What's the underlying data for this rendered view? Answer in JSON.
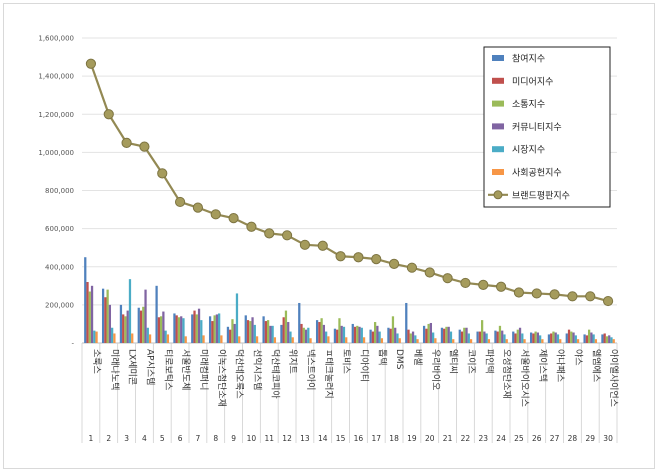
{
  "chart_data": {
    "type": "bar",
    "title": "",
    "xlabel": "",
    "ylabel": "",
    "ylim": [
      0,
      1600000
    ],
    "yticks": [
      0,
      200000,
      400000,
      600000,
      800000,
      1000000,
      1200000,
      1400000,
      1600000
    ],
    "ytick_labels": [
      "-",
      "200,000",
      "400,000",
      "600,000",
      "800,000",
      "1,000,000",
      "1,200,000",
      "1,400,000",
      "1,600,000"
    ],
    "legend_position": "top-right",
    "grid": "horizontal",
    "categories": [
      "소룩스",
      "미래나노텍",
      "LX세미콘",
      "AP시스템",
      "티로보틱스",
      "서울반도체",
      "미래컴퍼니",
      "이녹스첨단소재",
      "덕산네오룩스",
      "선익시스템",
      "덕산테코피아",
      "위지트",
      "넥스트아이",
      "ㅍ테크놀러지",
      "토비스",
      "디아이티",
      "톱텍",
      "DMS",
      "베셀",
      "우리바이오",
      "엘티씨",
      "코이즈",
      "파인텍",
      "오성첨단소재",
      "서울바이오시스",
      "제이스텍",
      "아나패스",
      "야스",
      "엘엠에스",
      "아이엘사이언스"
    ],
    "ranks": [
      "1",
      "2",
      "3",
      "4",
      "5",
      "6",
      "7",
      "8",
      "9",
      "10",
      "11",
      "12",
      "13",
      "14",
      "15",
      "16",
      "17",
      "18",
      "19",
      "20",
      "21",
      "22",
      "23",
      "24",
      "25",
      "26",
      "27",
      "28",
      "29",
      "30"
    ],
    "series": [
      {
        "name": "참여지수",
        "color": "#4f81bd",
        "type": "bar",
        "values": [
          450000,
          285000,
          200000,
          185000,
          300000,
          155000,
          150000,
          140000,
          85000,
          145000,
          140000,
          95000,
          210000,
          120000,
          75000,
          100000,
          70000,
          80000,
          210000,
          90000,
          80000,
          70000,
          60000,
          65000,
          60000,
          55000,
          45000,
          50000,
          45000,
          45000
        ]
      },
      {
        "name": "미디어지수",
        "color": "#c0504d",
        "type": "bar",
        "values": [
          320000,
          240000,
          150000,
          170000,
          135000,
          145000,
          170000,
          115000,
          70000,
          120000,
          115000,
          135000,
          100000,
          110000,
          70000,
          85000,
          60000,
          75000,
          70000,
          75000,
          75000,
          60000,
          60000,
          60000,
          50000,
          50000,
          50000,
          70000,
          40000,
          50000
        ]
      },
      {
        "name": "소통지수",
        "color": "#9bbb59",
        "type": "bar",
        "values": [
          270000,
          280000,
          140000,
          190000,
          140000,
          135000,
          150000,
          145000,
          125000,
          115000,
          120000,
          170000,
          80000,
          130000,
          130000,
          90000,
          110000,
          140000,
          50000,
          100000,
          85000,
          80000,
          120000,
          90000,
          70000,
          60000,
          60000,
          60000,
          70000,
          35000
        ]
      },
      {
        "name": "커뮤니티지수",
        "color": "#8064a2",
        "type": "bar",
        "values": [
          300000,
          200000,
          170000,
          280000,
          165000,
          140000,
          180000,
          150000,
          100000,
          135000,
          90000,
          110000,
          70000,
          95000,
          90000,
          85000,
          90000,
          80000,
          60000,
          105000,
          85000,
          80000,
          60000,
          65000,
          80000,
          55000,
          55000,
          55000,
          55000,
          40000
        ]
      },
      {
        "name": "시장지수",
        "color": "#4bacc6",
        "type": "bar",
        "values": [
          65000,
          80000,
          335000,
          80000,
          65000,
          130000,
          120000,
          155000,
          260000,
          95000,
          90000,
          60000,
          80000,
          60000,
          85000,
          80000,
          60000,
          50000,
          40000,
          55000,
          60000,
          50000,
          50000,
          45000,
          50000,
          40000,
          45000,
          40000,
          45000,
          30000
        ]
      },
      {
        "name": "사회공헌지수",
        "color": "#f79646",
        "type": "bar",
        "values": [
          60000,
          50000,
          50000,
          45000,
          45000,
          35000,
          40000,
          40000,
          35000,
          35000,
          30000,
          30000,
          25000,
          35000,
          30000,
          30000,
          25000,
          25000,
          20000,
          25000,
          20000,
          20000,
          20000,
          20000,
          20000,
          20000,
          20000,
          20000,
          20000,
          20000
        ]
      },
      {
        "name": "브랜드평판지수",
        "color": "#938953",
        "type": "line",
        "values": [
          1465000,
          1200000,
          1050000,
          1030000,
          890000,
          740000,
          710000,
          675000,
          655000,
          610000,
          575000,
          565000,
          515000,
          510000,
          455000,
          450000,
          440000,
          415000,
          395000,
          370000,
          340000,
          315000,
          305000,
          295000,
          265000,
          260000,
          255000,
          245000,
          245000,
          220000
        ]
      }
    ]
  }
}
